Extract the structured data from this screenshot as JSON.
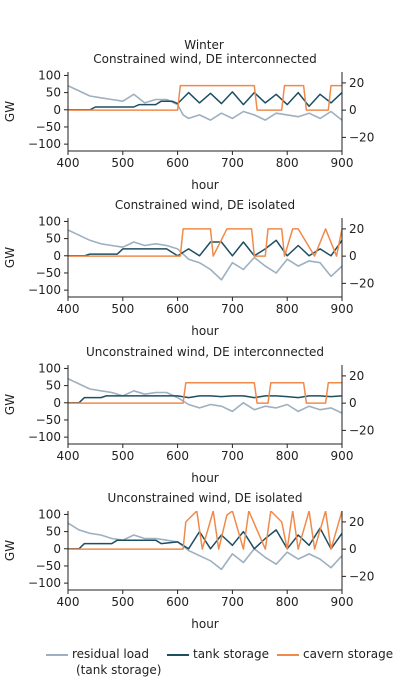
{
  "figure": {
    "suptitle": "Winter"
  },
  "colors": {
    "residual": "#9eb0bf",
    "tank": "#1d4e63",
    "cavern": "#f08a4b"
  },
  "legend": {
    "residual_line1": "residual load",
    "residual_line2": "(tank storage)",
    "tank": "tank storage",
    "cavern": "cavern storage"
  },
  "chart_data": [
    {
      "type": "line",
      "title": "Constrained wind, DE interconnected",
      "xlabel": "hour",
      "ylabel": "GW",
      "xlim": [
        400,
        900
      ],
      "ylim": [
        -120,
        110
      ],
      "y2lim": [
        -30,
        28
      ],
      "xticks": [
        "400",
        "500",
        "600",
        "700",
        "800",
        "900"
      ],
      "yticks": [
        "100",
        "50",
        "0",
        "−50",
        "−100"
      ],
      "y2ticks": [
        "20",
        "0",
        "−20"
      ],
      "series": [
        {
          "name": "residual load (tank storage)",
          "axis": "left",
          "x": [
            400,
            420,
            440,
            460,
            480,
            500,
            520,
            540,
            560,
            580,
            600,
            610,
            620,
            640,
            660,
            680,
            700,
            720,
            740,
            760,
            780,
            800,
            820,
            840,
            860,
            880,
            900
          ],
          "values": [
            70,
            55,
            40,
            35,
            30,
            25,
            45,
            20,
            30,
            30,
            15,
            -15,
            -25,
            -15,
            -30,
            -10,
            -25,
            -5,
            -15,
            -30,
            -10,
            -15,
            -20,
            -10,
            -25,
            -5,
            -30
          ]
        },
        {
          "name": "tank storage",
          "axis": "left",
          "x": [
            400,
            440,
            450,
            520,
            530,
            560,
            570,
            590,
            600,
            620,
            640,
            660,
            680,
            700,
            720,
            740,
            760,
            780,
            800,
            820,
            840,
            860,
            880,
            900
          ],
          "values": [
            0,
            0,
            8,
            8,
            15,
            15,
            25,
            25,
            18,
            50,
            20,
            48,
            18,
            52,
            15,
            50,
            20,
            45,
            15,
            50,
            10,
            45,
            20,
            50
          ]
        },
        {
          "name": "cavern storage",
          "axis": "right",
          "x": [
            400,
            600,
            605,
            740,
            745,
            790,
            795,
            830,
            835,
            860,
            865,
            875,
            880,
            900
          ],
          "values": [
            0,
            0,
            18,
            18,
            0,
            0,
            18,
            18,
            0,
            0,
            0,
            0,
            18,
            18
          ]
        }
      ]
    },
    {
      "type": "line",
      "title": "Constrained wind, DE isolated",
      "xlabel": "hour",
      "ylabel": "GW",
      "xlim": [
        400,
        900
      ],
      "ylim": [
        -120,
        110
      ],
      "y2lim": [
        -30,
        28
      ],
      "xticks": [
        "400",
        "500",
        "600",
        "700",
        "800",
        "900"
      ],
      "yticks": [
        "100",
        "50",
        "0",
        "−50",
        "−100"
      ],
      "y2ticks": [
        "20",
        "0",
        "−20"
      ],
      "series": [
        {
          "name": "residual load (tank storage)",
          "axis": "left",
          "x": [
            400,
            420,
            440,
            460,
            480,
            500,
            520,
            540,
            560,
            580,
            600,
            620,
            640,
            660,
            680,
            700,
            720,
            740,
            760,
            780,
            800,
            820,
            840,
            860,
            880,
            900
          ],
          "values": [
            75,
            60,
            45,
            35,
            30,
            25,
            40,
            30,
            35,
            30,
            20,
            -10,
            -20,
            -40,
            -70,
            -20,
            -40,
            -5,
            -30,
            -50,
            -10,
            -30,
            -15,
            -20,
            -60,
            -30
          ]
        },
        {
          "name": "tank storage",
          "axis": "left",
          "x": [
            400,
            430,
            440,
            490,
            500,
            580,
            600,
            620,
            640,
            660,
            680,
            700,
            720,
            740,
            760,
            780,
            800,
            820,
            840,
            860,
            880,
            900
          ],
          "values": [
            0,
            0,
            5,
            5,
            20,
            20,
            0,
            20,
            0,
            40,
            40,
            0,
            40,
            0,
            20,
            45,
            0,
            30,
            0,
            20,
            0,
            45
          ]
        },
        {
          "name": "cavern storage",
          "axis": "right",
          "x": [
            400,
            605,
            610,
            660,
            665,
            690,
            695,
            735,
            740,
            760,
            765,
            790,
            795,
            810,
            820,
            850,
            870,
            890,
            900
          ],
          "values": [
            0,
            0,
            20,
            20,
            0,
            20,
            20,
            20,
            0,
            0,
            20,
            20,
            0,
            20,
            20,
            0,
            20,
            0,
            20
          ]
        }
      ]
    },
    {
      "type": "line",
      "title": "Unconstrained wind, DE interconnected",
      "xlabel": "hour",
      "ylabel": "GW",
      "xlim": [
        400,
        900
      ],
      "ylim": [
        -120,
        110
      ],
      "y2lim": [
        -30,
        28
      ],
      "xticks": [
        "400",
        "500",
        "600",
        "700",
        "800",
        "900"
      ],
      "yticks": [
        "100",
        "50",
        "0",
        "−50",
        "−100"
      ],
      "y2ticks": [
        "20",
        "0",
        "−20"
      ],
      "series": [
        {
          "name": "residual load (tank storage)",
          "axis": "left",
          "x": [
            400,
            420,
            440,
            460,
            480,
            500,
            520,
            540,
            560,
            580,
            600,
            620,
            640,
            660,
            680,
            700,
            720,
            740,
            760,
            780,
            800,
            820,
            840,
            860,
            880,
            900
          ],
          "values": [
            70,
            55,
            40,
            35,
            30,
            20,
            35,
            25,
            30,
            30,
            15,
            -5,
            -15,
            -5,
            -10,
            -25,
            0,
            -20,
            -10,
            -15,
            -5,
            -25,
            -10,
            -20,
            -15,
            -30
          ]
        },
        {
          "name": "tank storage",
          "axis": "left",
          "x": [
            400,
            420,
            430,
            460,
            470,
            600,
            620,
            640,
            660,
            680,
            700,
            720,
            740,
            760,
            780,
            800,
            820,
            840,
            860,
            880,
            900
          ],
          "values": [
            0,
            0,
            15,
            15,
            20,
            20,
            15,
            20,
            20,
            18,
            20,
            20,
            15,
            20,
            20,
            18,
            15,
            20,
            20,
            18,
            20
          ]
        },
        {
          "name": "cavern storage",
          "axis": "right",
          "x": [
            400,
            610,
            615,
            740,
            745,
            765,
            770,
            830,
            835,
            870,
            875,
            900
          ],
          "values": [
            0,
            0,
            15,
            15,
            0,
            0,
            15,
            15,
            0,
            0,
            15,
            15
          ]
        }
      ]
    },
    {
      "type": "line",
      "title": "Unconstrained wind, DE isolated",
      "xlabel": "hour",
      "ylabel": "GW",
      "xlim": [
        400,
        900
      ],
      "ylim": [
        -120,
        110
      ],
      "y2lim": [
        -30,
        28
      ],
      "xticks": [
        "400",
        "500",
        "600",
        "700",
        "800",
        "900"
      ],
      "yticks": [
        "100",
        "50",
        "0",
        "−50",
        "−100"
      ],
      "y2ticks": [
        "20",
        "0",
        "−20"
      ],
      "series": [
        {
          "name": "residual load (tank storage)",
          "axis": "left",
          "x": [
            400,
            420,
            440,
            460,
            480,
            500,
            520,
            540,
            560,
            580,
            600,
            620,
            640,
            660,
            680,
            700,
            720,
            740,
            760,
            780,
            800,
            820,
            840,
            860,
            880,
            900
          ],
          "values": [
            75,
            55,
            45,
            40,
            30,
            25,
            40,
            30,
            30,
            25,
            20,
            -5,
            -20,
            -35,
            -60,
            -15,
            -40,
            0,
            -25,
            -45,
            -10,
            -30,
            -15,
            -30,
            -55,
            -20
          ]
        },
        {
          "name": "tank storage",
          "axis": "left",
          "x": [
            400,
            420,
            430,
            480,
            490,
            560,
            570,
            600,
            620,
            640,
            660,
            680,
            700,
            720,
            740,
            760,
            780,
            800,
            820,
            840,
            860,
            880,
            900
          ],
          "values": [
            0,
            0,
            15,
            15,
            25,
            25,
            15,
            20,
            0,
            50,
            0,
            40,
            10,
            50,
            0,
            30,
            55,
            0,
            40,
            10,
            60,
            0,
            45
          ]
        },
        {
          "name": "cavern storage",
          "axis": "right",
          "x": [
            400,
            610,
            615,
            635,
            645,
            665,
            675,
            690,
            700,
            720,
            730,
            760,
            770,
            790,
            800,
            810,
            820,
            840,
            850,
            870,
            880,
            900
          ],
          "values": [
            0,
            0,
            20,
            28,
            0,
            28,
            0,
            25,
            28,
            0,
            28,
            0,
            28,
            20,
            0,
            28,
            0,
            28,
            0,
            28,
            0,
            28
          ]
        }
      ]
    }
  ]
}
